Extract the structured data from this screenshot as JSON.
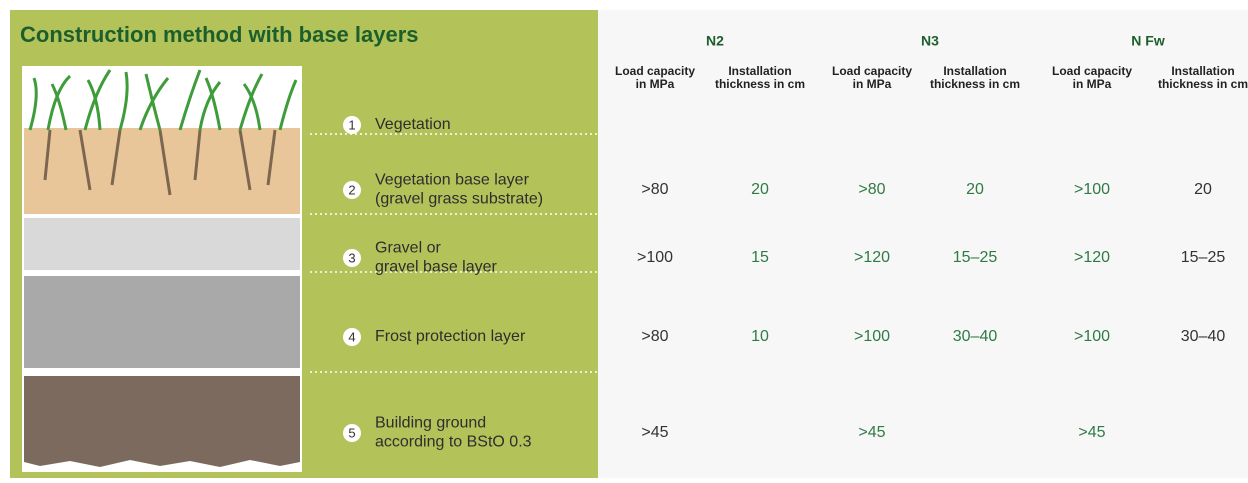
{
  "title": "Construction method with base layers",
  "layers": [
    {
      "number": "1",
      "lines": [
        "Vegetation"
      ]
    },
    {
      "number": "2",
      "lines": [
        "Vegetation base layer",
        "(gravel grass substrate)"
      ]
    },
    {
      "number": "3",
      "lines": [
        "Gravel or",
        "gravel base layer"
      ]
    },
    {
      "number": "4",
      "lines": [
        "Frost protection layer"
      ]
    },
    {
      "number": "5",
      "lines": [
        "Building ground",
        "according to BStO 0.3"
      ]
    }
  ],
  "table": {
    "groups": [
      {
        "name": "N2",
        "columns": [
          {
            "lines": [
              "Load capacity",
              "in MPa"
            ]
          },
          {
            "lines": [
              "Installation",
              "thickness in cm"
            ]
          }
        ]
      },
      {
        "name": "N3",
        "columns": [
          {
            "lines": [
              "Load capacity",
              "in MPa"
            ]
          },
          {
            "lines": [
              "Installation",
              "thickness in cm"
            ]
          }
        ]
      },
      {
        "name": "N Fw",
        "columns": [
          {
            "lines": [
              "Load capacity",
              "in MPa"
            ]
          },
          {
            "lines": [
              "Installation",
              "thickness in cm"
            ]
          }
        ]
      }
    ],
    "rows": [
      {
        "cells": [
          ">80",
          "20",
          ">80",
          "20",
          ">100",
          "20"
        ]
      },
      {
        "cells": [
          ">100",
          "15",
          ">120",
          "15–25",
          ">120",
          "15–25"
        ]
      },
      {
        "cells": [
          ">80",
          "10",
          ">100",
          "30–40",
          ">100",
          "30–40"
        ]
      },
      {
        "cells": [
          ">45",
          null,
          ">45",
          null,
          ">45",
          null
        ]
      }
    ]
  }
}
